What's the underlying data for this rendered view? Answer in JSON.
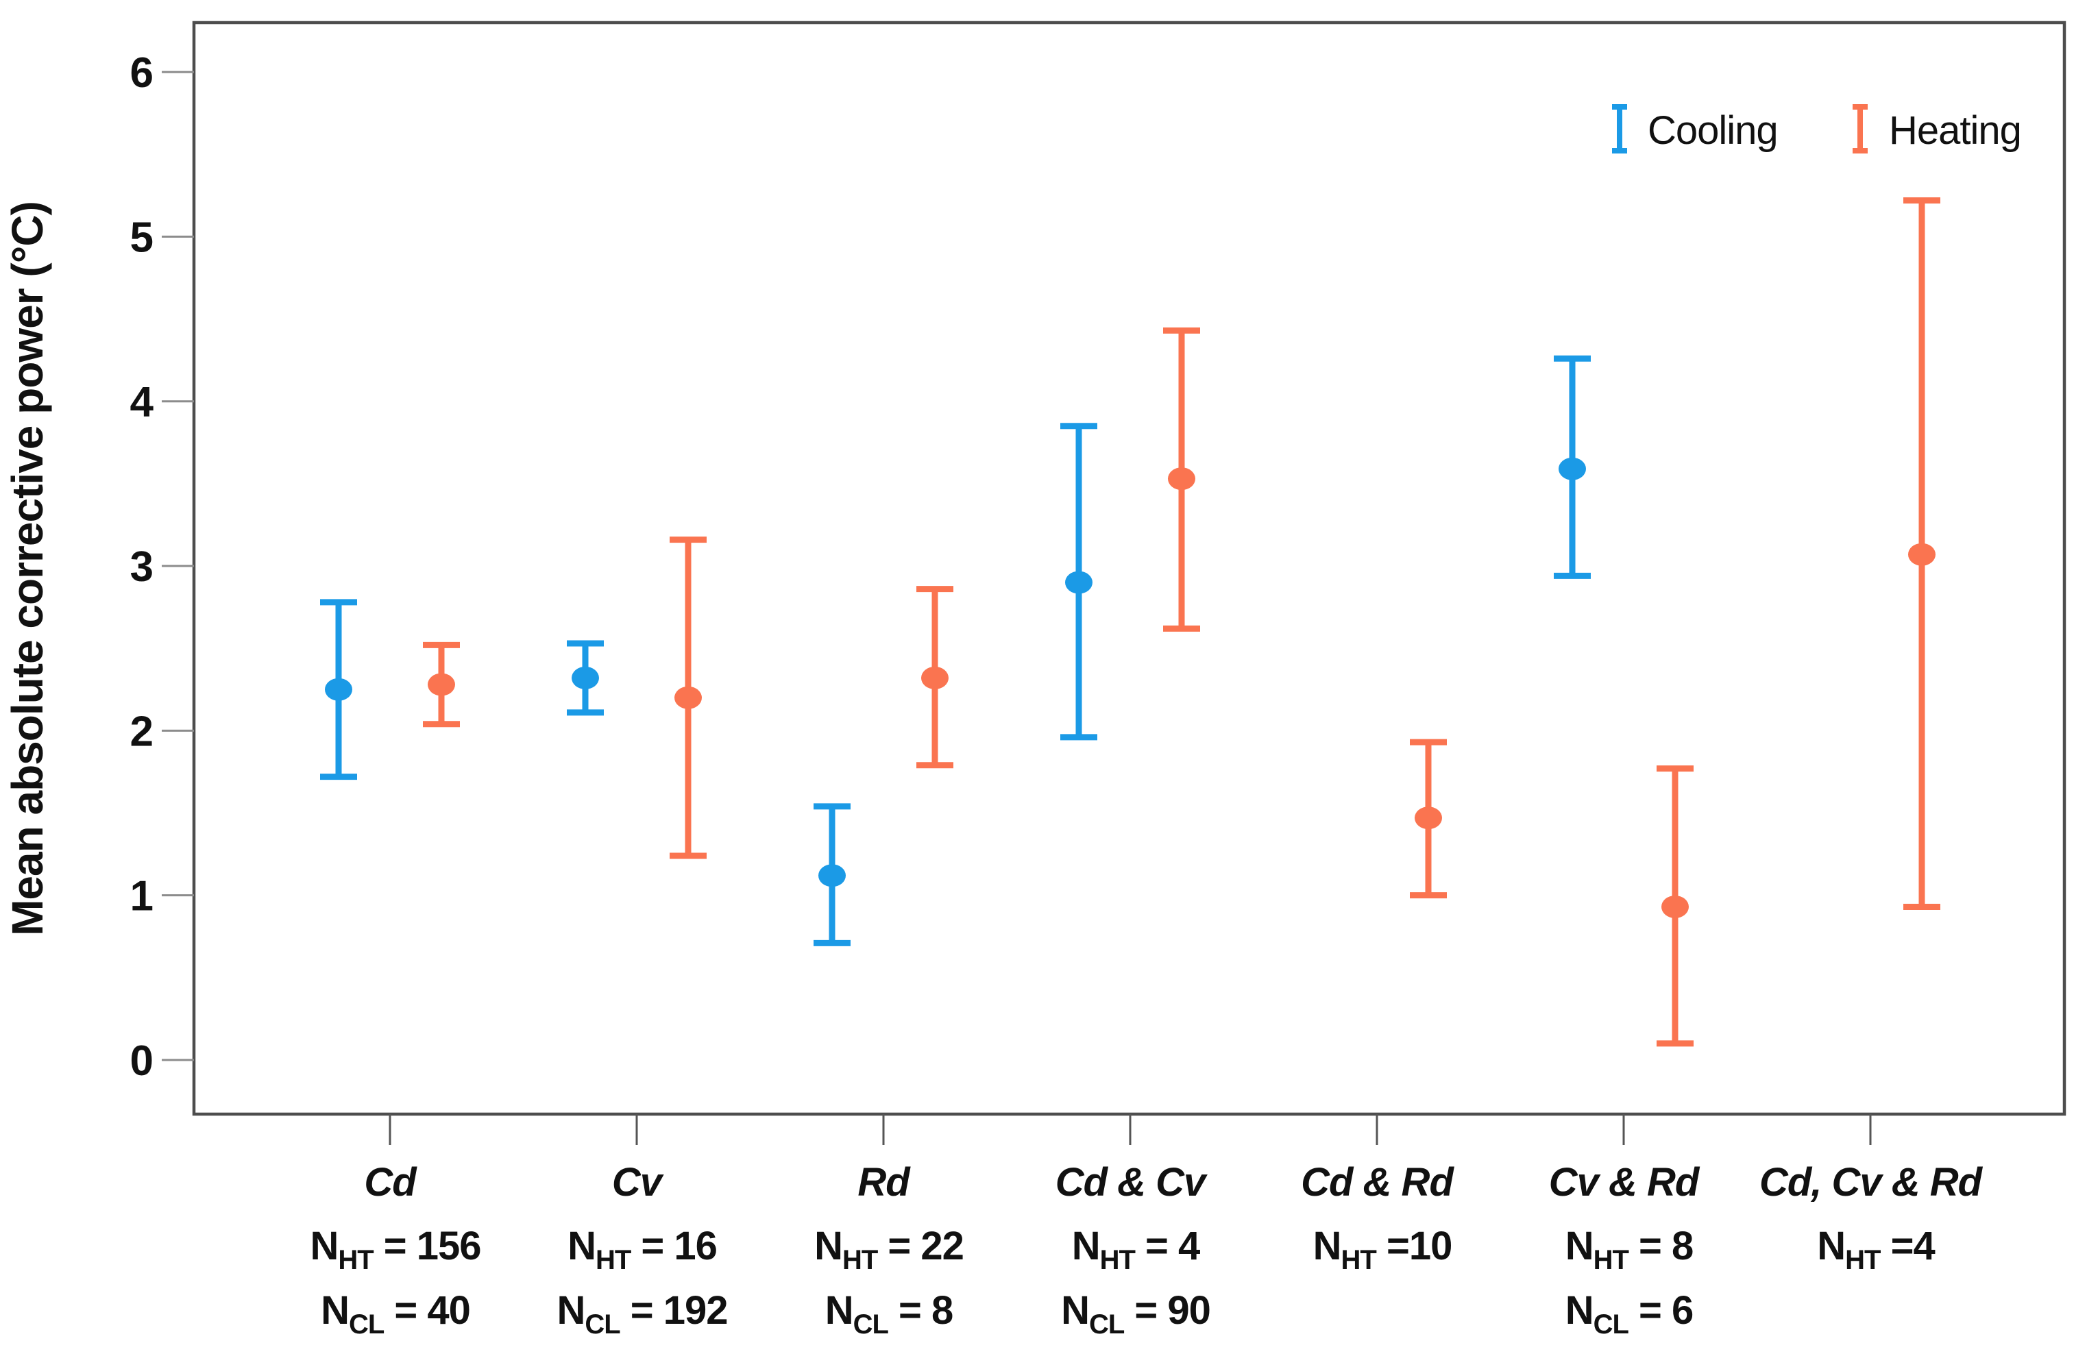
{
  "chart_data": {
    "type": "errorbar",
    "title": "",
    "xlabel": "",
    "ylabel": "Mean absolute corrective power (°C)",
    "ylim": [
      -0.329,
      6.3
    ],
    "yticks": [
      0,
      1,
      2,
      3,
      4,
      5,
      6
    ],
    "grid": false,
    "legend_position": "top-right-inside",
    "categories": [
      "Cd",
      "Cv",
      "Rd",
      "Cd & Cv",
      "Cd & Rd",
      "Cv & Rd",
      "Cd, Cv & Rd"
    ],
    "series": [
      {
        "name": "Cooling",
        "color": "#1B9AE6",
        "values": [
          2.25,
          2.32,
          1.12,
          2.9,
          null,
          3.59,
          null
        ],
        "lo": [
          1.72,
          2.11,
          0.71,
          1.96,
          null,
          2.94,
          null
        ],
        "hi": [
          2.78,
          2.53,
          1.54,
          3.85,
          null,
          4.26,
          null
        ]
      },
      {
        "name": "Heating",
        "color": "#FA7450",
        "values": [
          2.28,
          2.2,
          2.32,
          3.53,
          1.47,
          0.93,
          3.07
        ],
        "lo": [
          2.04,
          1.24,
          1.79,
          2.62,
          1.0,
          0.1,
          0.93
        ],
        "hi": [
          2.52,
          3.16,
          2.86,
          4.43,
          1.93,
          1.77,
          5.22
        ]
      }
    ],
    "group_annotations": [
      {
        "lines": [
          {
            "base": "N",
            "sub": "HT",
            "rest": " = 156"
          },
          {
            "base": "N",
            "sub": "CL",
            "rest": " = 40"
          }
        ]
      },
      {
        "lines": [
          {
            "base": "N",
            "sub": "HT",
            "rest": " = 16"
          },
          {
            "base": "N",
            "sub": "CL",
            "rest": " = 192"
          }
        ]
      },
      {
        "lines": [
          {
            "base": "N",
            "sub": "HT",
            "rest": " = 22"
          },
          {
            "base": "N",
            "sub": "CL",
            "rest": " = 8"
          }
        ]
      },
      {
        "lines": [
          {
            "base": "N",
            "sub": "HT",
            "rest": " = 4"
          },
          {
            "base": "N",
            "sub": "CL",
            "rest": " = 90"
          }
        ]
      },
      {
        "lines": [
          {
            "base": "N",
            "sub": "HT",
            "rest": " =10"
          }
        ]
      },
      {
        "lines": [
          {
            "base": "N",
            "sub": "HT",
            "rest": " = 8"
          },
          {
            "base": "N",
            "sub": "CL",
            "rest": " = 6"
          }
        ]
      },
      {
        "lines": [
          {
            "base": "N",
            "sub": "HT",
            "rest": " =4"
          }
        ]
      }
    ]
  },
  "legend": {
    "cooling_label": "Cooling",
    "heating_label": "Heating"
  },
  "style_colors": {
    "cooling": "#1B9AE6",
    "heating": "#FA7450",
    "frame": "#4d4d4d",
    "tick_line": "#8c8c8c",
    "text": "#111111"
  }
}
